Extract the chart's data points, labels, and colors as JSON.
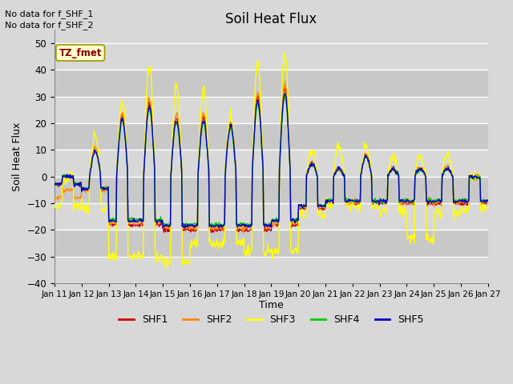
{
  "title": "Soil Heat Flux",
  "ylabel": "Soil Heat Flux",
  "xlabel": "Time",
  "annotation_line1": "No data for f_SHF_1",
  "annotation_line2": "No data for f_SHF_2",
  "legend_label": "TZ_fmet",
  "series_labels": [
    "SHF1",
    "SHF2",
    "SHF3",
    "SHF4",
    "SHF5"
  ],
  "series_colors": [
    "#cc0000",
    "#ff8800",
    "#ffff00",
    "#00cc00",
    "#0000cc"
  ],
  "ylim": [
    -40,
    55
  ],
  "yticks": [
    -40,
    -30,
    -20,
    -10,
    0,
    10,
    20,
    30,
    40,
    50
  ],
  "bg_color": "#d8d8d8",
  "grid_color": "#ffffff",
  "band_colors": [
    "#d8d8d8",
    "#c8c8c8"
  ]
}
